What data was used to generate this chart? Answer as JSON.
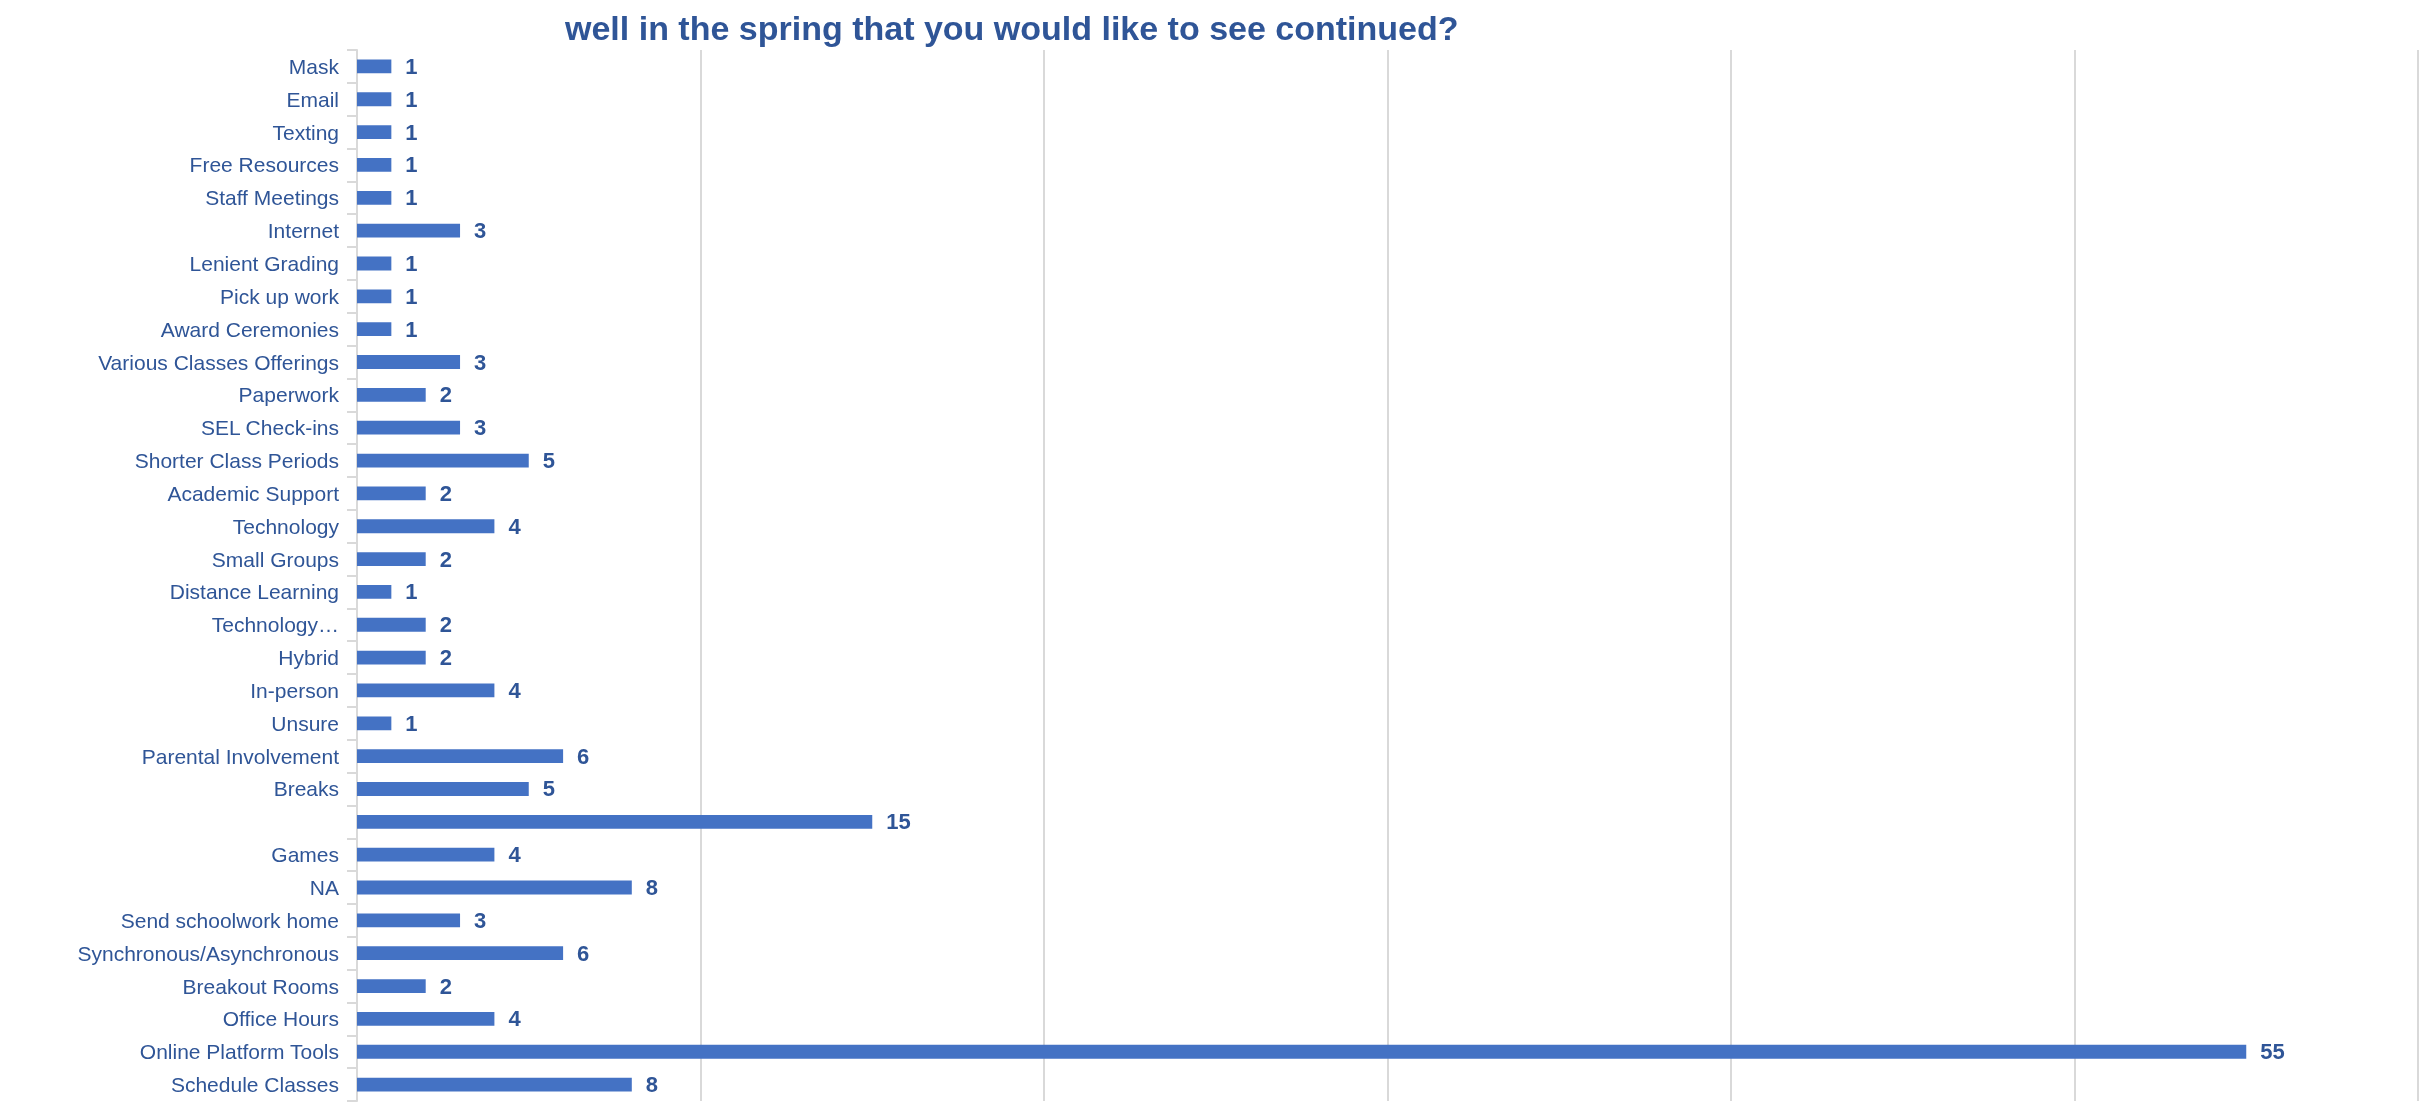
{
  "chart_data": {
    "type": "bar",
    "orientation": "horizontal",
    "title": "well in the spring that you would like to see continued?",
    "categories": [
      "Mask",
      "Email",
      "Texting",
      "Free Resources",
      "Staff Meetings",
      "Internet",
      "Lenient Grading",
      "Pick up work",
      "Award Ceremonies",
      "Various Classes Offerings",
      "Paperwork",
      "SEL Check-ins",
      "Shorter Class Periods",
      "Academic Support",
      "Technology",
      "Small Groups",
      "Distance Learning",
      "Technology…",
      "Hybrid",
      "In-person",
      "Unsure",
      "Parental Involvement",
      "Breaks",
      null,
      "Games",
      "NA",
      "Send schoolwork home",
      "Synchronous/Asynchronous",
      "Breakout Rooms",
      "Office Hours",
      "Online Platform Tools",
      "Schedule Classes"
    ],
    "values": [
      1,
      1,
      1,
      1,
      1,
      3,
      1,
      1,
      1,
      3,
      2,
      3,
      5,
      2,
      4,
      2,
      1,
      2,
      2,
      4,
      1,
      6,
      5,
      15,
      4,
      8,
      3,
      6,
      2,
      4,
      55,
      8
    ],
    "color": "#4472c4",
    "data_labels": true,
    "grid": "x",
    "tick_labels": "y"
  }
}
